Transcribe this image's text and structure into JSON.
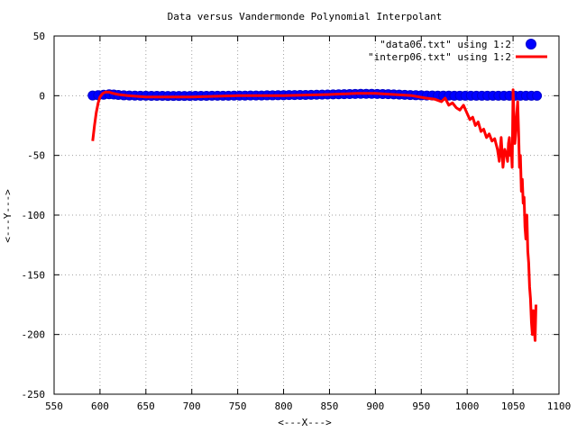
{
  "chart_data": {
    "type": "line",
    "title": "Data versus Vandermonde Polynomial Interpolant",
    "xlabel": "<---X--->",
    "ylabel": "<---Y--->",
    "xlim": [
      550,
      1100
    ],
    "ylim": [
      -250,
      50
    ],
    "xticks": [
      550,
      600,
      650,
      700,
      750,
      800,
      850,
      900,
      950,
      1000,
      1050,
      1100
    ],
    "yticks": [
      -250,
      -200,
      -150,
      -100,
      -50,
      0,
      50
    ],
    "grid": true,
    "legend_position": "top-right",
    "series": [
      {
        "name": "\"data06.txt\" using 1:2",
        "style": "points",
        "color": "#0000ff",
        "x": [
          592,
          598,
          604,
          610,
          615,
          620,
          626,
          632,
          638,
          644,
          650,
          656,
          662,
          668,
          674,
          680,
          686,
          692,
          698,
          704,
          710,
          716,
          722,
          728,
          734,
          740,
          746,
          752,
          758,
          764,
          770,
          776,
          782,
          788,
          794,
          800,
          806,
          812,
          818,
          824,
          830,
          836,
          842,
          848,
          854,
          860,
          866,
          872,
          878,
          884,
          890,
          896,
          902,
          908,
          914,
          920,
          926,
          932,
          938,
          944,
          950,
          956,
          962,
          968,
          974,
          980,
          986,
          992,
          998,
          1004,
          1010,
          1016,
          1022,
          1028,
          1034,
          1040,
          1046,
          1052,
          1058,
          1064,
          1070,
          1076
        ],
        "y": [
          0.2,
          0.4,
          0.8,
          1.2,
          1.0,
          0.6,
          0.3,
          0.2,
          0.1,
          0.0,
          0.0,
          -0.1,
          -0.1,
          -0.1,
          -0.2,
          -0.2,
          -0.2,
          -0.2,
          -0.2,
          -0.1,
          -0.1,
          -0.1,
          0.0,
          0.0,
          0.0,
          0.0,
          0.1,
          0.1,
          0.1,
          0.2,
          0.2,
          0.2,
          0.3,
          0.3,
          0.4,
          0.4,
          0.5,
          0.5,
          0.6,
          0.6,
          0.7,
          0.8,
          0.9,
          1.0,
          1.1,
          1.2,
          1.3,
          1.4,
          1.5,
          1.6,
          1.6,
          1.6,
          1.5,
          1.4,
          1.3,
          1.1,
          0.9,
          0.7,
          0.5,
          0.4,
          0.3,
          0.2,
          0.2,
          0.1,
          0.1,
          0.1,
          0.0,
          0.0,
          0.0,
          0.0,
          0.0,
          0.0,
          0.0,
          0.0,
          0.0,
          0.0,
          0.0,
          0.0,
          0.0,
          0.0,
          0.0,
          0.0
        ]
      },
      {
        "name": "\"interp06.txt\" using 1:2",
        "style": "line",
        "color": "#ff0000",
        "x": [
          592,
          594,
          596,
          598,
          600,
          603,
          606,
          610,
          614,
          620,
          630,
          650,
          700,
          750,
          800,
          850,
          880,
          900,
          920,
          940,
          955,
          965,
          972,
          976,
          980,
          984,
          988,
          992,
          996,
          1000,
          1003,
          1006,
          1009,
          1012,
          1015,
          1018,
          1021,
          1024,
          1027,
          1030,
          1033,
          1035,
          1037,
          1039,
          1041,
          1043,
          1044,
          1045,
          1046,
          1047,
          1048,
          1049,
          1050,
          1051,
          1052,
          1053,
          1054,
          1055,
          1056,
          1057,
          1058,
          1059,
          1060,
          1061,
          1062,
          1063,
          1064,
          1065,
          1066,
          1067,
          1068,
          1069,
          1070,
          1071,
          1072,
          1073,
          1074,
          1075
        ],
        "y": [
          -38,
          -25,
          -14,
          -6,
          -1,
          2,
          3,
          3,
          2,
          1,
          0,
          -1,
          -1,
          0,
          0,
          1,
          2,
          2,
          1,
          0,
          -2,
          -3,
          -5,
          -2,
          -8,
          -6,
          -10,
          -12,
          -8,
          -15,
          -20,
          -18,
          -25,
          -22,
          -30,
          -28,
          -35,
          -32,
          -38,
          -36,
          -45,
          -55,
          -35,
          -60,
          -45,
          -50,
          -55,
          -40,
          -35,
          -50,
          -45,
          -60,
          5,
          -20,
          -40,
          -30,
          -15,
          -5,
          -30,
          -60,
          -50,
          -80,
          -70,
          -90,
          -85,
          -110,
          -120,
          -100,
          -130,
          -140,
          -160,
          -170,
          -190,
          -200,
          -180,
          -195,
          -205,
          -175
        ]
      }
    ]
  }
}
